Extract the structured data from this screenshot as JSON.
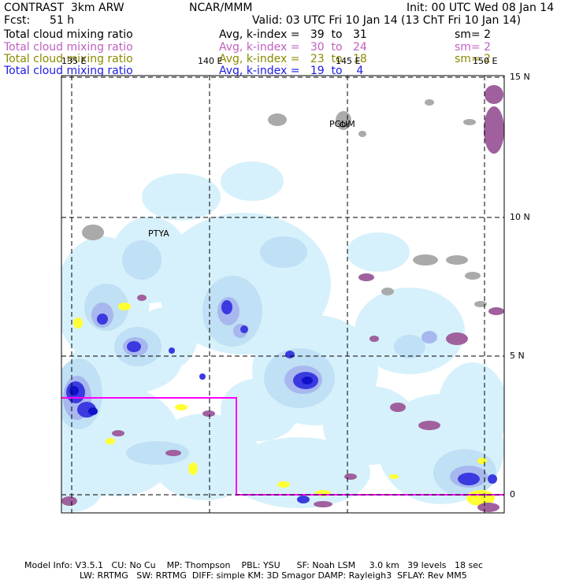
{
  "header": {
    "model": "CONTRAST  3km ARW",
    "center": "NCAR/MMM",
    "init": "Init: 00 UTC Wed 08 Jan 14",
    "fcst_label": "Fcst:",
    "fcst_value": "51 h",
    "valid": "Valid: 03 UTC Fri 10 Jan 14 (13 ChT Fri 10 Jan 14)"
  },
  "legend_rows": [
    {
      "field": "Total cloud mixing ratio",
      "index": "Avg, k-index =   39  to   31",
      "smooth": "sm= 2",
      "color": "#000000"
    },
    {
      "field": "Total cloud mixing ratio",
      "index": "Avg, k-index =   30  to   24",
      "smooth": "sm= 2",
      "color": "#c060c0"
    },
    {
      "field": "Total cloud mixing ratio",
      "index": "Avg, k-index =   23  to   18",
      "smooth": "sm= 2",
      "color": "#8a8a00"
    },
    {
      "field": "Total cloud mixing ratio",
      "index": "Avg, k-index =   19  to    4",
      "smooth": "",
      "color": "#1a1ae6"
    }
  ],
  "map": {
    "lon_labels": [
      "135 E",
      "140 E",
      "145 E",
      "150 E"
    ],
    "lat_labels": [
      "15 N",
      "10 N",
      "5 N",
      "0"
    ],
    "stations": [
      "PGUM",
      "PTYA"
    ],
    "colors": {
      "cloud_light": "#d6f1fb",
      "cloud_mid": "#bfe0f5",
      "cloud_lav": "#a8b8ee",
      "cloud_blue": "#3a3ae0",
      "cloud_core": "#1010c8",
      "high_purple": "#a0609e",
      "mid_yellow": "#ffff33",
      "land_gray": "#aaaaaa",
      "domain_box": "#ff00ff"
    }
  },
  "footer": {
    "line1": "Model Info: V3.5.1   CU: No Cu    MP: Thompson    PBL: YSU      SF: Noah LSM     3.0 km   39 levels   18 sec",
    "line2": "LW: RRTMG   SW: RRTMG  DIFF: simple KM: 3D Smagor DAMP: Rayleigh3  SFLAY: Rev MM5"
  }
}
